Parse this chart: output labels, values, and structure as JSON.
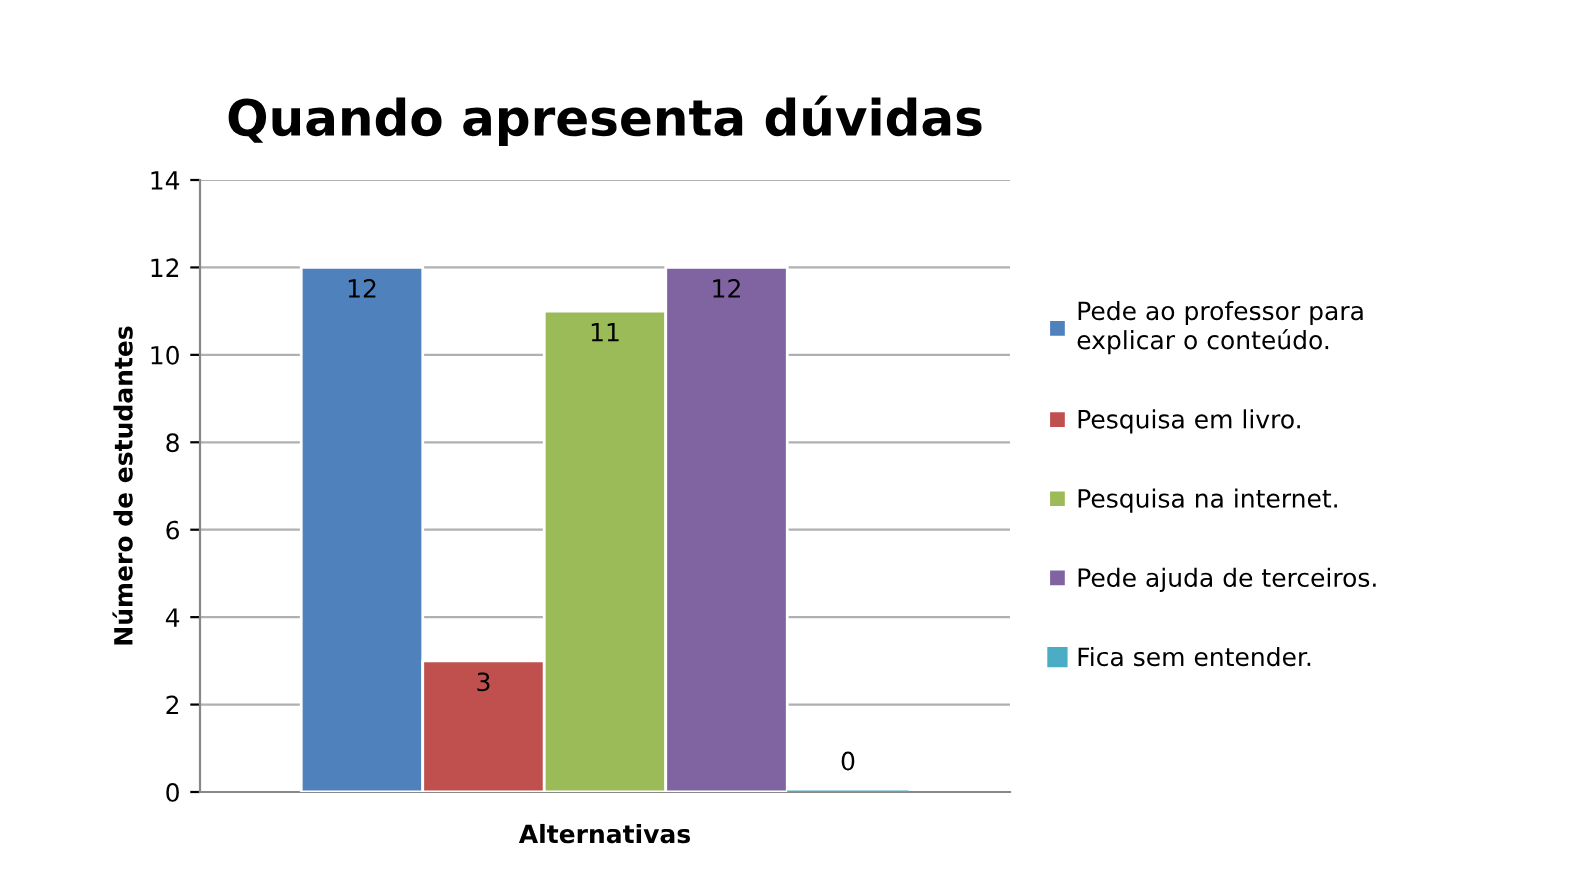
{
  "chart_data": {
    "type": "bar",
    "title": "Quando apresenta dúvidas",
    "xlabel": "Alternativas",
    "ylabel": "Número de estudantes",
    "categories": [
      null
    ],
    "series": [
      {
        "name": "Pede ao professor para\nexplicar o conteúdo.",
        "color": "#4f81bd",
        "values": [
          12
        ]
      },
      {
        "name": "Pesquisa em livro.",
        "color": "#c0504d",
        "values": [
          3
        ]
      },
      {
        "name": "Pesquisa na internet.",
        "color": "#9bbb59",
        "values": [
          11
        ]
      },
      {
        "name": "Pede ajuda de terceiros.",
        "color": "#8064a2",
        "values": [
          12
        ]
      },
      {
        "name": "Fica sem entender.",
        "color": "#4bacc6",
        "values": [
          0
        ]
      }
    ],
    "ylim": [
      0,
      14
    ],
    "yticks": [
      0,
      2,
      4,
      6,
      8,
      10,
      12,
      14
    ],
    "grid": "y",
    "legend": "right",
    "data_labels": true
  }
}
